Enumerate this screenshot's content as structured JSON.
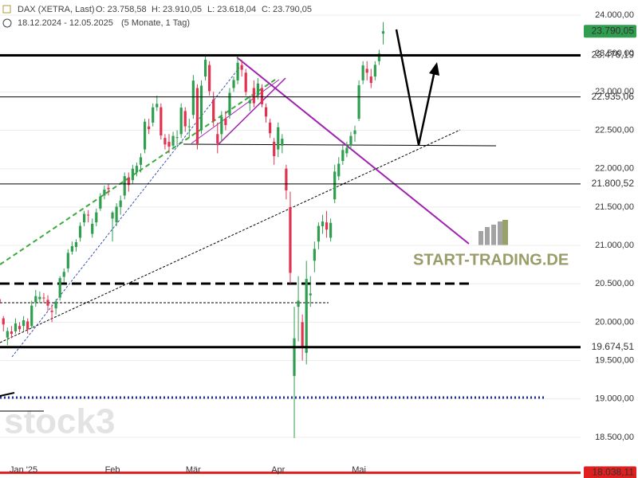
{
  "chart_data": {
    "type": "candlestick",
    "header": {
      "title": "DAX (XETRA, Last)",
      "ohlc": [
        "O: 23.758,58",
        "H: 23.910,05",
        "L: 23.618,04",
        "C: 23.790,05"
      ],
      "range": "18.12.2024 - 12.05.2025",
      "period": "(5 Monate, 1 Tag)"
    },
    "watermarks": [
      "START-TRADING.DE",
      "stock3"
    ],
    "categories": [
      null,
      null,
      null,
      null,
      null,
      null,
      "Jan '25",
      null,
      null,
      null,
      null,
      null,
      null,
      null,
      null,
      null,
      null,
      null,
      null,
      null,
      null,
      null,
      null,
      null,
      null,
      null,
      null,
      null,
      "Feb",
      null,
      null,
      null,
      null,
      null,
      null,
      null,
      null,
      null,
      null,
      null,
      null,
      null,
      null,
      null,
      null,
      null,
      null,
      null,
      "Mär",
      null,
      null,
      null,
      null,
      null,
      null,
      null,
      null,
      null,
      null,
      null,
      null,
      null,
      null,
      null,
      null,
      null,
      null,
      null,
      null,
      "Apr",
      null,
      null,
      null,
      null,
      null,
      null,
      null,
      null,
      null,
      null,
      null,
      null,
      null,
      null,
      null,
      null,
      null,
      null,
      null,
      "Mai",
      null,
      null,
      null,
      null,
      null,
      null
    ],
    "open": [
      20300,
      20050,
      19800,
      19880,
      19880,
      19950,
      19950,
      20010,
      19950,
      20260,
      20300,
      20320,
      20290,
      20150,
      20180,
      20320,
      20590,
      20700,
      20920,
      20980,
      21100,
      21300,
      21400,
      21150,
      21300,
      21480,
      21650,
      21750,
      21350,
      21300,
      21500,
      21650,
      21880,
      21850,
      21950,
      22050,
      22250,
      22550,
      22600,
      22800,
      22800,
      22400,
      22350,
      22300,
      22400,
      22450,
      22750,
      22550,
      22700,
      23050,
      22500,
      23200,
      23350,
      22900,
      22450,
      22450,
      22650,
      22700,
      23050,
      23150,
      23350,
      23250,
      22850,
      23050,
      22950,
      23050,
      22800,
      22600,
      22350,
      22250,
      22300,
      22000,
      21500,
      19300,
      20200,
      20000,
      19600,
      20350,
      20800,
      21050,
      21250,
      21300,
      21100,
      21600,
      21900,
      22100,
      22200,
      22300,
      22450,
      22650,
      23150,
      23300,
      23200,
      23200,
      23400,
      23758.58
    ],
    "high": [
      20420,
      20080,
      19930,
      19950,
      20050,
      20000,
      20080,
      20050,
      20280,
      20420,
      20400,
      20380,
      20350,
      20230,
      20300,
      20600,
      20700,
      20950,
      21050,
      21080,
      21300,
      21450,
      21460,
      21350,
      21480,
      21680,
      21780,
      21800,
      21450,
      21550,
      21650,
      21950,
      21950,
      22050,
      22080,
      22200,
      22650,
      22650,
      22850,
      22950,
      22850,
      22450,
      22450,
      22480,
      22500,
      22850,
      22800,
      22650,
      23220,
      23100,
      23150,
      23476,
      23400,
      23000,
      22600,
      22750,
      22750,
      23050,
      23200,
      23480,
      23420,
      23300,
      22950,
      23150,
      23180,
      23100,
      22850,
      22650,
      22400,
      22600,
      22450,
      22050,
      21700,
      20200,
      20600,
      20100,
      20800,
      20600,
      21050,
      21300,
      21400,
      21450,
      21350,
      22050,
      22150,
      22300,
      22350,
      22480,
      22560,
      23150,
      23400,
      23400,
      23300,
      23400,
      23550,
      23910.05
    ],
    "low": [
      20150,
      19880,
      19700,
      19790,
      19850,
      19870,
      19880,
      19850,
      19920,
      20200,
      20250,
      20250,
      20150,
      20000,
      20100,
      20280,
      20520,
      20650,
      20880,
      20920,
      21050,
      21250,
      21300,
      21100,
      21250,
      21450,
      21600,
      21650,
      21050,
      21250,
      21400,
      21600,
      21700,
      21800,
      21900,
      21950,
      22200,
      22450,
      22550,
      22750,
      22380,
      22250,
      22200,
      22250,
      22300,
      22400,
      22480,
      22400,
      22650,
      22250,
      22450,
      23150,
      22950,
      22550,
      22200,
      22350,
      22500,
      22650,
      23000,
      23100,
      23200,
      22950,
      22750,
      22800,
      22900,
      22800,
      22600,
      22400,
      22050,
      22150,
      22200,
      21600,
      20500,
      18490,
      19750,
      19500,
      19450,
      20200,
      20650,
      20950,
      21150,
      21100,
      21050,
      21550,
      21850,
      22050,
      22150,
      22250,
      22350,
      22620,
      23100,
      23150,
      23050,
      23150,
      23350,
      23618.04
    ],
    "close": [
      20242,
      19970,
      19885,
      19848,
      19984,
      19909,
      20025,
      19906,
      20216,
      20340,
      20330,
      20317,
      20215,
      20132,
      20271,
      20574,
      20655,
      20903,
      20990,
      21042,
      21254,
      21411,
      21394,
      21282,
      21430,
      21637,
      21727,
      21732,
      21428,
      21505,
      21585,
      21902,
      21787,
      21999,
      22037,
      22148,
      22612,
      22514,
      22798,
      22844,
      22433,
      22315,
      22287,
      22426,
      22410,
      22795,
      22551,
      22551,
      23147,
      22327,
      23081,
      23419,
      23009,
      22620,
      22329,
      22676,
      22567,
      22987,
      23154,
      23380,
      23288,
      22999,
      22892,
      22852,
      23109,
      22839,
      22678,
      22461,
      22163,
      22539,
      22390,
      21717,
      20642,
      19790,
      20280,
      19670,
      20563,
      20374,
      20955,
      21254,
      21311,
      21206,
      21294,
      21962,
      22064,
      22242,
      22272,
      22426,
      22497,
      23086,
      23345,
      23249,
      23116,
      23352,
      23499,
      23790.05
    ],
    "up_color": "#2f9e4f",
    "down_color": "#e03350",
    "ylim": [
      17970,
      24197
    ],
    "yticks": [
      {
        "value": 18500,
        "label": "18.500,00"
      },
      {
        "value": 19000,
        "label": "19.000,00"
      },
      {
        "value": 19500,
        "label": "19.500,00"
      },
      {
        "value": 20000,
        "label": "20.000,00"
      },
      {
        "value": 20500,
        "label": "20.500,00"
      },
      {
        "value": 21000,
        "label": "21.000,00"
      },
      {
        "value": 21500,
        "label": "21.500,00"
      },
      {
        "value": 22000,
        "label": "22.000,00"
      },
      {
        "value": 22500,
        "label": "22.500,00"
      },
      {
        "value": 23000,
        "label": "23.000,00"
      },
      {
        "value": 23500,
        "label": "23.500,00"
      },
      {
        "value": 24000,
        "label": "24.000,00"
      }
    ],
    "levels": [
      {
        "value": 23790.05,
        "label": "23.790,05",
        "color": "#2f9e4f",
        "line": false
      },
      {
        "value": 23476.19,
        "label": "23.476,19",
        "color": "#000000",
        "width": 3,
        "line": true
      },
      {
        "value": 22935.06,
        "label": "22.935,06",
        "color": "#000000",
        "width": 1,
        "line": true
      },
      {
        "value": 21800.52,
        "label": "21.800,52",
        "color": "#000000",
        "width": 1,
        "line": true
      },
      {
        "value": 19674.51,
        "label": "19.674,51",
        "color": "#000000",
        "width": 3,
        "line": true
      },
      {
        "value": 18038.11,
        "label": "18.038,11",
        "color": "#e0201e",
        "width": 3,
        "line": true
      }
    ]
  }
}
